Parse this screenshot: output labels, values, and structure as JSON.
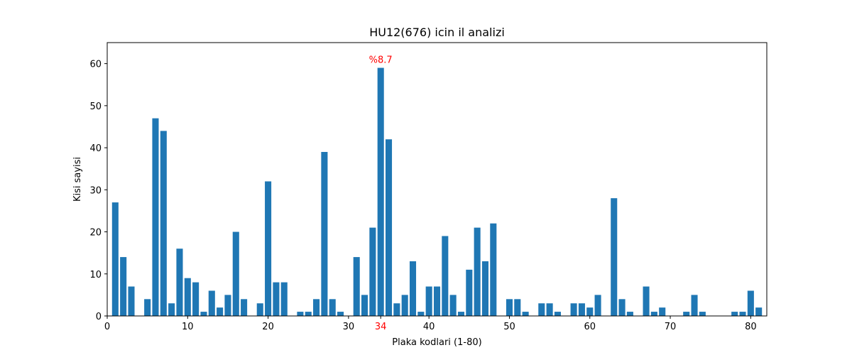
{
  "chart_data": {
    "type": "bar",
    "title": "HU12(676) icin il analizi",
    "xlabel": "Plaka kodlari (1-80)",
    "ylabel": "Kisi sayisi",
    "xlim": [
      0,
      82
    ],
    "ylim": [
      0,
      65
    ],
    "xticks": [
      "0",
      "10",
      "20",
      "30",
      "40",
      "50",
      "60",
      "70",
      "80"
    ],
    "yticks": [
      "0",
      "10",
      "20",
      "30",
      "40",
      "50",
      "60"
    ],
    "highlight_tick": "34",
    "bar_color": "#1f77b4",
    "highlight_color": "#ff0000",
    "grid": false,
    "legend": "none",
    "annotation": {
      "x": 34,
      "y": 59,
      "text": "%8.7"
    },
    "bars": [
      {
        "x": 1,
        "y": 27
      },
      {
        "x": 2,
        "y": 14
      },
      {
        "x": 3,
        "y": 7
      },
      {
        "x": 4,
        "y": 0
      },
      {
        "x": 5,
        "y": 4
      },
      {
        "x": 6,
        "y": 47
      },
      {
        "x": 7,
        "y": 44
      },
      {
        "x": 8,
        "y": 3
      },
      {
        "x": 9,
        "y": 16
      },
      {
        "x": 10,
        "y": 9
      },
      {
        "x": 11,
        "y": 8
      },
      {
        "x": 12,
        "y": 1
      },
      {
        "x": 13,
        "y": 6
      },
      {
        "x": 14,
        "y": 2
      },
      {
        "x": 15,
        "y": 5
      },
      {
        "x": 16,
        "y": 20
      },
      {
        "x": 17,
        "y": 4
      },
      {
        "x": 18,
        "y": 0
      },
      {
        "x": 19,
        "y": 3
      },
      {
        "x": 20,
        "y": 32
      },
      {
        "x": 21,
        "y": 8
      },
      {
        "x": 22,
        "y": 8
      },
      {
        "x": 23,
        "y": 0
      },
      {
        "x": 24,
        "y": 1
      },
      {
        "x": 25,
        "y": 1
      },
      {
        "x": 26,
        "y": 4
      },
      {
        "x": 27,
        "y": 39
      },
      {
        "x": 28,
        "y": 4
      },
      {
        "x": 29,
        "y": 1
      },
      {
        "x": 30,
        "y": 0
      },
      {
        "x": 31,
        "y": 14
      },
      {
        "x": 32,
        "y": 5
      },
      {
        "x": 33,
        "y": 21
      },
      {
        "x": 34,
        "y": 59
      },
      {
        "x": 35,
        "y": 42
      },
      {
        "x": 36,
        "y": 3
      },
      {
        "x": 37,
        "y": 5
      },
      {
        "x": 38,
        "y": 13
      },
      {
        "x": 39,
        "y": 1
      },
      {
        "x": 40,
        "y": 7
      },
      {
        "x": 41,
        "y": 7
      },
      {
        "x": 42,
        "y": 19
      },
      {
        "x": 43,
        "y": 5
      },
      {
        "x": 44,
        "y": 1
      },
      {
        "x": 45,
        "y": 11
      },
      {
        "x": 46,
        "y": 21
      },
      {
        "x": 47,
        "y": 13
      },
      {
        "x": 48,
        "y": 22
      },
      {
        "x": 49,
        "y": 0
      },
      {
        "x": 50,
        "y": 4
      },
      {
        "x": 51,
        "y": 4
      },
      {
        "x": 52,
        "y": 1
      },
      {
        "x": 53,
        "y": 0
      },
      {
        "x": 54,
        "y": 3
      },
      {
        "x": 55,
        "y": 3
      },
      {
        "x": 56,
        "y": 1
      },
      {
        "x": 57,
        "y": 0
      },
      {
        "x": 58,
        "y": 3
      },
      {
        "x": 59,
        "y": 3
      },
      {
        "x": 60,
        "y": 2
      },
      {
        "x": 61,
        "y": 5
      },
      {
        "x": 62,
        "y": 0
      },
      {
        "x": 63,
        "y": 28
      },
      {
        "x": 64,
        "y": 4
      },
      {
        "x": 65,
        "y": 1
      },
      {
        "x": 66,
        "y": 0
      },
      {
        "x": 67,
        "y": 7
      },
      {
        "x": 68,
        "y": 1
      },
      {
        "x": 69,
        "y": 2
      },
      {
        "x": 70,
        "y": 0
      },
      {
        "x": 71,
        "y": 0
      },
      {
        "x": 72,
        "y": 1
      },
      {
        "x": 73,
        "y": 5
      },
      {
        "x": 74,
        "y": 1
      },
      {
        "x": 75,
        "y": 0
      },
      {
        "x": 76,
        "y": 0
      },
      {
        "x": 77,
        "y": 0
      },
      {
        "x": 78,
        "y": 1
      },
      {
        "x": 79,
        "y": 1
      },
      {
        "x": 80,
        "y": 6
      },
      {
        "x": 81,
        "y": 2
      }
    ]
  }
}
